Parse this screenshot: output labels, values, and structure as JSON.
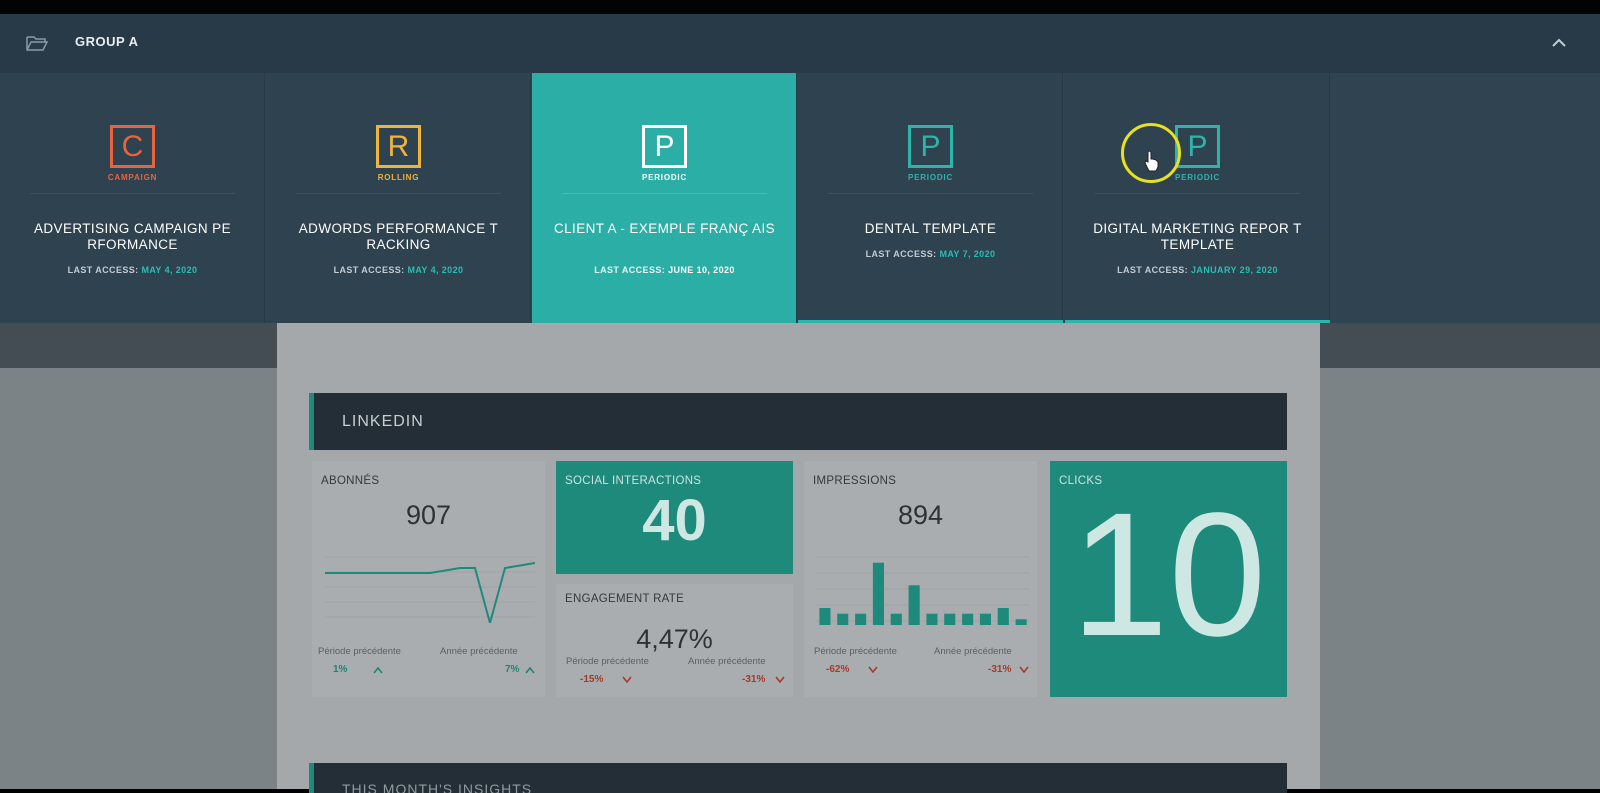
{
  "group": {
    "title": "GROUP A"
  },
  "tiles": [
    {
      "letter": "C",
      "type": "CAMPAIGN",
      "name": "ADVERTISING CAMPAIGN PE RFORMANCE",
      "access_label": "LAST ACCESS:",
      "access_date": "MAY 4, 2020",
      "color": "#e8643f"
    },
    {
      "letter": "R",
      "type": "ROLLING",
      "name": "ADWORDS PERFORMANCE T RACKING",
      "access_label": "LAST ACCESS:",
      "access_date": "MAY 4, 2020",
      "color": "#f0b43a"
    },
    {
      "letter": "P",
      "type": "PERIODIC",
      "name": "CLIENT A - EXEMPLE FRANÇ AIS",
      "access_label": "LAST ACCESS:",
      "access_date": "JUNE 10, 2020",
      "color": "#ffffff"
    },
    {
      "letter": "P",
      "type": "PERIODIC",
      "name": "DENTAL TEMPLATE",
      "access_label": "LAST ACCESS:",
      "access_date": "MAY 7, 2020",
      "color": "#2bb5ab"
    },
    {
      "letter": "P",
      "type": "PERIODIC",
      "name": "DIGITAL MARKETING REPOR T TEMPLATE",
      "access_label": "LAST ACCESS:",
      "access_date": "JANUARY 29, 2020",
      "color": "#2bb5ab"
    }
  ],
  "report": {
    "section_title": "LINKEDIN",
    "next_section_title": "THIS MONTH'S INSIGHTS",
    "abonnes": {
      "title": "ABONNÉS",
      "value": "907",
      "prev_period_label": "Période précédente",
      "prev_year_label": "Année précédente",
      "prev_period_delta": "1%",
      "prev_year_delta": "7%"
    },
    "social": {
      "title": "SOCIAL INTERACTIONS",
      "value": "40"
    },
    "engagement": {
      "title": "ENGAGEMENT RATE",
      "value": "4,47%",
      "prev_period_label": "Période précédente",
      "prev_year_label": "Année précédente",
      "prev_period_delta": "-15%",
      "prev_year_delta": "-31%"
    },
    "impressions": {
      "title": "IMPRESSIONS",
      "value": "894",
      "prev_period_label": "Période précédente",
      "prev_year_label": "Année précédente",
      "prev_period_delta": "-62%",
      "prev_year_delta": "-31%"
    },
    "clicks": {
      "title": "CLICKS",
      "value": "10"
    }
  },
  "chart_data": [
    {
      "type": "line",
      "series": [
        {
          "values": [
            10,
            10,
            10,
            10,
            10,
            10,
            10,
            10,
            10.5,
            11,
            11,
            0,
            11,
            11.5,
            12
          ]
        }
      ]
    },
    {
      "type": "bar",
      "series": [
        {
          "values": [
            3,
            2,
            2,
            11,
            2,
            7,
            2,
            2,
            2,
            2,
            3,
            1
          ]
        }
      ]
    }
  ],
  "colors": {
    "accent": "#2aaea6",
    "header": "#283a47",
    "positive": "#1c8675",
    "negative": "#a53a2a"
  }
}
